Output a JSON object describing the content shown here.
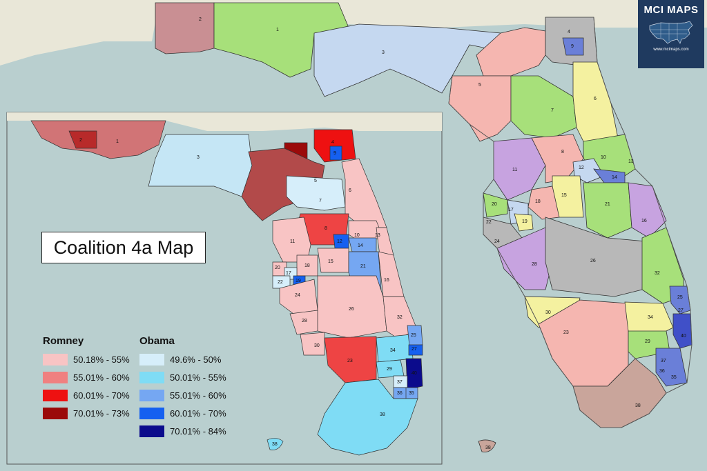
{
  "brand": {
    "title": "MCI MAPS",
    "url": "www.mcimaps.com"
  },
  "map_title": "Coalition 4a Map",
  "legend": {
    "romney": {
      "heading": "Romney",
      "items": [
        {
          "label": "50.18% - 55%",
          "color": "#f8c4c4"
        },
        {
          "label": "55.01% - 60%",
          "color": "#f08080"
        },
        {
          "label": "60.01% - 70%",
          "color": "#ee1111"
        },
        {
          "label": "70.01% - 73%",
          "color": "#9b0a0a"
        }
      ]
    },
    "obama": {
      "heading": "Obama",
      "items": [
        {
          "label": "49.6% - 50%",
          "color": "#d6eefa"
        },
        {
          "label": "50.01% - 55%",
          "color": "#7fdcf5"
        },
        {
          "label": "55.01% - 60%",
          "color": "#75a7f2"
        },
        {
          "label": "60.01% - 70%",
          "color": "#1560f0"
        },
        {
          "label": "70.01% - 84%",
          "color": "#0b0b8c"
        }
      ]
    }
  },
  "colors": {
    "water": "#b9cfcf",
    "land_outside": "#e9e7d8",
    "inset_land": "#f2efe6",
    "district_pink": "#f5b6b0",
    "district_green": "#a7e07a",
    "district_lightblue": "#c5d8f0",
    "district_purple": "#c7a3e0",
    "district_gray": "#b8b8b8",
    "district_yellow": "#f4f1a0"
  },
  "main_map": {
    "district_labels": [
      "1",
      "2",
      "3",
      "4",
      "5",
      "6",
      "7",
      "8",
      "9",
      "10",
      "11",
      "12",
      "13",
      "14",
      "15",
      "16",
      "17",
      "18",
      "19",
      "20",
      "21",
      "22",
      "23",
      "24",
      "25",
      "26",
      "27",
      "28",
      "29",
      "30",
      "32",
      "34",
      "35",
      "36",
      "37",
      "38",
      "40"
    ]
  },
  "inset_map": {
    "district_labels": [
      "1",
      "2",
      "3",
      "4",
      "5",
      "6",
      "7",
      "8",
      "9",
      "10",
      "11",
      "12",
      "13",
      "14",
      "15",
      "16",
      "17",
      "18",
      "19",
      "20",
      "21",
      "22",
      "23",
      "24",
      "25",
      "26",
      "27",
      "28",
      "29",
      "30",
      "32",
      "34",
      "35",
      "36",
      "37",
      "38",
      "40"
    ]
  }
}
